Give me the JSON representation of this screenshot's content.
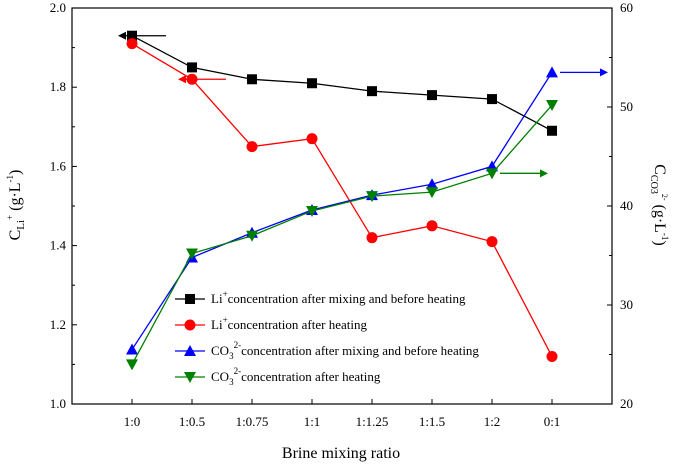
{
  "chart_data": {
    "type": "line",
    "categories": [
      "1:0",
      "1:0.5",
      "1:0.75",
      "1:1",
      "1:1.25",
      "1:1.5",
      "1:2",
      "0:1"
    ],
    "xlabel": "Brine mixing ratio",
    "ylabel_left": {
      "main": "C",
      "sub": "Li",
      "sup": "+",
      "tail": " (g·L",
      "tail_sup": "-1",
      "close": ")"
    },
    "ylabel_right": {
      "main": "C",
      "sub": "CO3",
      "sup": "2-",
      "tail": " (g·L",
      "tail_sup": "-1",
      "close": ")"
    },
    "ylim_left": [
      1.0,
      2.0
    ],
    "yticks_left": [
      "1.0",
      "1.2",
      "1.4",
      "1.6",
      "1.8",
      "2.0"
    ],
    "ylim_right": [
      20,
      60
    ],
    "yticks_right": [
      "20",
      "30",
      "40",
      "50",
      "60"
    ],
    "series": [
      {
        "name": "Li+ concentration after mixing and before heating",
        "legend_main": "Li",
        "legend_sup": "+",
        "legend_sub": "",
        "legend_rest": "concentration after mixing and before heating",
        "axis": "left",
        "color": "#000000",
        "marker": "square",
        "values": [
          1.93,
          1.85,
          1.82,
          1.81,
          1.79,
          1.78,
          1.77,
          1.69
        ]
      },
      {
        "name": "Li+ concentration after heating",
        "legend_main": "Li",
        "legend_sup": "+",
        "legend_sub": "",
        "legend_rest": "concentration after heating",
        "axis": "left",
        "color": "#ff0000",
        "marker": "circle",
        "values": [
          1.91,
          1.82,
          1.65,
          1.67,
          1.42,
          1.45,
          1.41,
          1.12
        ]
      },
      {
        "name": "CO3 2- concentration after mixing and before heating",
        "legend_main": "CO",
        "legend_sup": "2-",
        "legend_sub": "3",
        "legend_rest": "concentration after mixing and before heating",
        "axis": "right",
        "color": "#0000ff",
        "marker": "triangle-up",
        "values": [
          25.5,
          34.8,
          37.3,
          39.6,
          41.1,
          42.2,
          44.0,
          53.5
        ]
      },
      {
        "name": "CO3 2- concentration after heating",
        "legend_main": "CO",
        "legend_sup": "2-",
        "legend_sub": "3",
        "legend_rest": "concentration after heating",
        "axis": "right",
        "color": "#008000",
        "marker": "triangle-down",
        "values": [
          24.0,
          35.2,
          37.0,
          39.5,
          41.0,
          41.4,
          43.3,
          50.2
        ]
      }
    ],
    "arrows": [
      {
        "series": 0,
        "direction": "left",
        "at_category": 0
      },
      {
        "series": 1,
        "direction": "left",
        "at_category": 1
      },
      {
        "series": 2,
        "direction": "right",
        "at_category": 7
      },
      {
        "series": 3,
        "direction": "right",
        "at_category": 6
      }
    ]
  }
}
